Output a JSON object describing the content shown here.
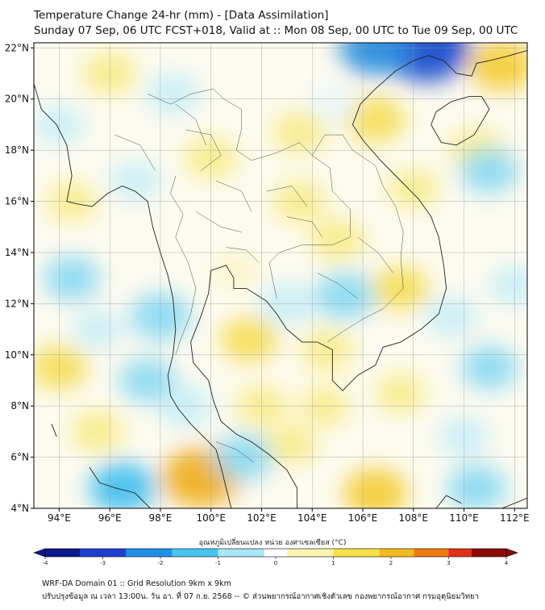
{
  "title": {
    "line1": "Temperature Change 24-hr (mm) - [Data Assimilation]",
    "line2": "Sunday 07 Sep, 06 UTC FCST+018, Valid at :: Mon 08 Sep, 00 UTC to Tue 09 Sep, 00 UTC"
  },
  "axes": {
    "lat_labels": [
      "22°N",
      "20°N",
      "18°N",
      "16°N",
      "14°N",
      "12°N",
      "10°N",
      "8°N",
      "6°N",
      "4°N"
    ],
    "lat_values": [
      22,
      20,
      18,
      16,
      14,
      12,
      10,
      8,
      6,
      4
    ],
    "lon_labels": [
      "94°E",
      "96°E",
      "98°E",
      "100°E",
      "102°E",
      "104°E",
      "106°E",
      "108°E",
      "110°E",
      "112°E"
    ],
    "lon_values": [
      94,
      96,
      98,
      100,
      102,
      104,
      106,
      108,
      110,
      112
    ],
    "lon_range": [
      93.0,
      112.5
    ],
    "lat_range": [
      4.0,
      22.2
    ]
  },
  "colorbar": {
    "title": "อุณหภูมิเปลี่ยนแปลง หน่วย องศาเซลเซียส (°C)",
    "labels": [
      "-4",
      "-3",
      "-2",
      "-1",
      "0",
      "1",
      "2",
      "3",
      "4"
    ],
    "values": [
      -4,
      -3,
      -2,
      -1,
      0,
      1,
      2,
      3,
      4
    ],
    "colors": [
      "#0a1a8c",
      "#1f3fd0",
      "#1e8fe8",
      "#46c6f2",
      "#a8e6f8",
      "#ffffff",
      "#fbf3b0",
      "#f7e04a",
      "#f5b820",
      "#f07a10",
      "#e0301a",
      "#8a0a0a"
    ]
  },
  "anomalies": [
    {
      "lon": 108.5,
      "lat": 22.0,
      "value": -3.2
    },
    {
      "lon": 106.5,
      "lat": 22.0,
      "value": -2.0
    },
    {
      "lon": 111.5,
      "lat": 21.3,
      "value": 1.6
    },
    {
      "lon": 106.5,
      "lat": 19.2,
      "value": 1.2
    },
    {
      "lon": 103.5,
      "lat": 18.7,
      "value": 0.9
    },
    {
      "lon": 100.0,
      "lat": 17.7,
      "value": 0.8
    },
    {
      "lon": 103.5,
      "lat": 16.0,
      "value": 0.8
    },
    {
      "lon": 96.0,
      "lat": 21.0,
      "value": 0.9
    },
    {
      "lon": 110.5,
      "lat": 18.0,
      "value": 0.9
    },
    {
      "lon": 108.0,
      "lat": 16.5,
      "value": 0.6
    },
    {
      "lon": 111.0,
      "lat": 17.2,
      "value": -1.1
    },
    {
      "lon": 105.0,
      "lat": 14.5,
      "value": 0.9
    },
    {
      "lon": 105.3,
      "lat": 12.3,
      "value": -1.3
    },
    {
      "lon": 103.0,
      "lat": 12.0,
      "value": -0.9
    },
    {
      "lon": 101.5,
      "lat": 10.6,
      "value": 1.1
    },
    {
      "lon": 107.5,
      "lat": 12.6,
      "value": 1.0
    },
    {
      "lon": 104.6,
      "lat": 10.2,
      "value": 0.8
    },
    {
      "lon": 94.5,
      "lat": 13.0,
      "value": -1.0
    },
    {
      "lon": 98.0,
      "lat": 11.5,
      "value": -1.3
    },
    {
      "lon": 97.5,
      "lat": 9.0,
      "value": -1.0
    },
    {
      "lon": 99.0,
      "lat": 8.0,
      "value": -0.8
    },
    {
      "lon": 94.0,
      "lat": 9.5,
      "value": 1.0
    },
    {
      "lon": 95.5,
      "lat": 7.0,
      "value": 0.8
    },
    {
      "lon": 102.0,
      "lat": 8.0,
      "value": 0.7
    },
    {
      "lon": 104.5,
      "lat": 8.0,
      "value": 0.5
    },
    {
      "lon": 107.5,
      "lat": 8.5,
      "value": 0.6
    },
    {
      "lon": 111.0,
      "lat": 9.5,
      "value": -1.0
    },
    {
      "lon": 109.5,
      "lat": 11.5,
      "value": -0.7
    },
    {
      "lon": 99.6,
      "lat": 5.2,
      "value": 2.4
    },
    {
      "lon": 96.5,
      "lat": 4.8,
      "value": -1.7
    },
    {
      "lon": 101.3,
      "lat": 6.0,
      "value": -1.2
    },
    {
      "lon": 103.2,
      "lat": 6.5,
      "value": 0.6
    },
    {
      "lon": 106.5,
      "lat": 4.6,
      "value": 1.5
    },
    {
      "lon": 110.5,
      "lat": 4.8,
      "value": -1.2
    },
    {
      "lon": 110.0,
      "lat": 6.8,
      "value": -0.6
    },
    {
      "lon": 94.5,
      "lat": 16.0,
      "value": 0.6
    },
    {
      "lon": 94.0,
      "lat": 19.0,
      "value": -0.6
    },
    {
      "lon": 97.0,
      "lat": 16.8,
      "value": -0.6
    },
    {
      "lon": 98.5,
      "lat": 20.2,
      "value": -0.8
    },
    {
      "lon": 104.8,
      "lat": 19.8,
      "value": -0.4
    },
    {
      "lon": 112.0,
      "lat": 12.7,
      "value": -0.6
    },
    {
      "lon": 101.0,
      "lat": 13.3,
      "value": 0.4
    },
    {
      "lon": 95.5,
      "lat": 11.0,
      "value": -0.5
    }
  ],
  "footer": {
    "line1": "WRF-DA Domain 01 :: Grid Resolution 9km x 9km",
    "line2": "ปรับปรุงข้อมูล ณ เวลา 13:00น. วัน อา. ที่ 07 ก.ย. 2568 -- © ส่วนพยากรณ์อากาศเชิงตัวเลข กองพยากรณ์อากาศ กรมอุตุนิยมวิทยา"
  }
}
